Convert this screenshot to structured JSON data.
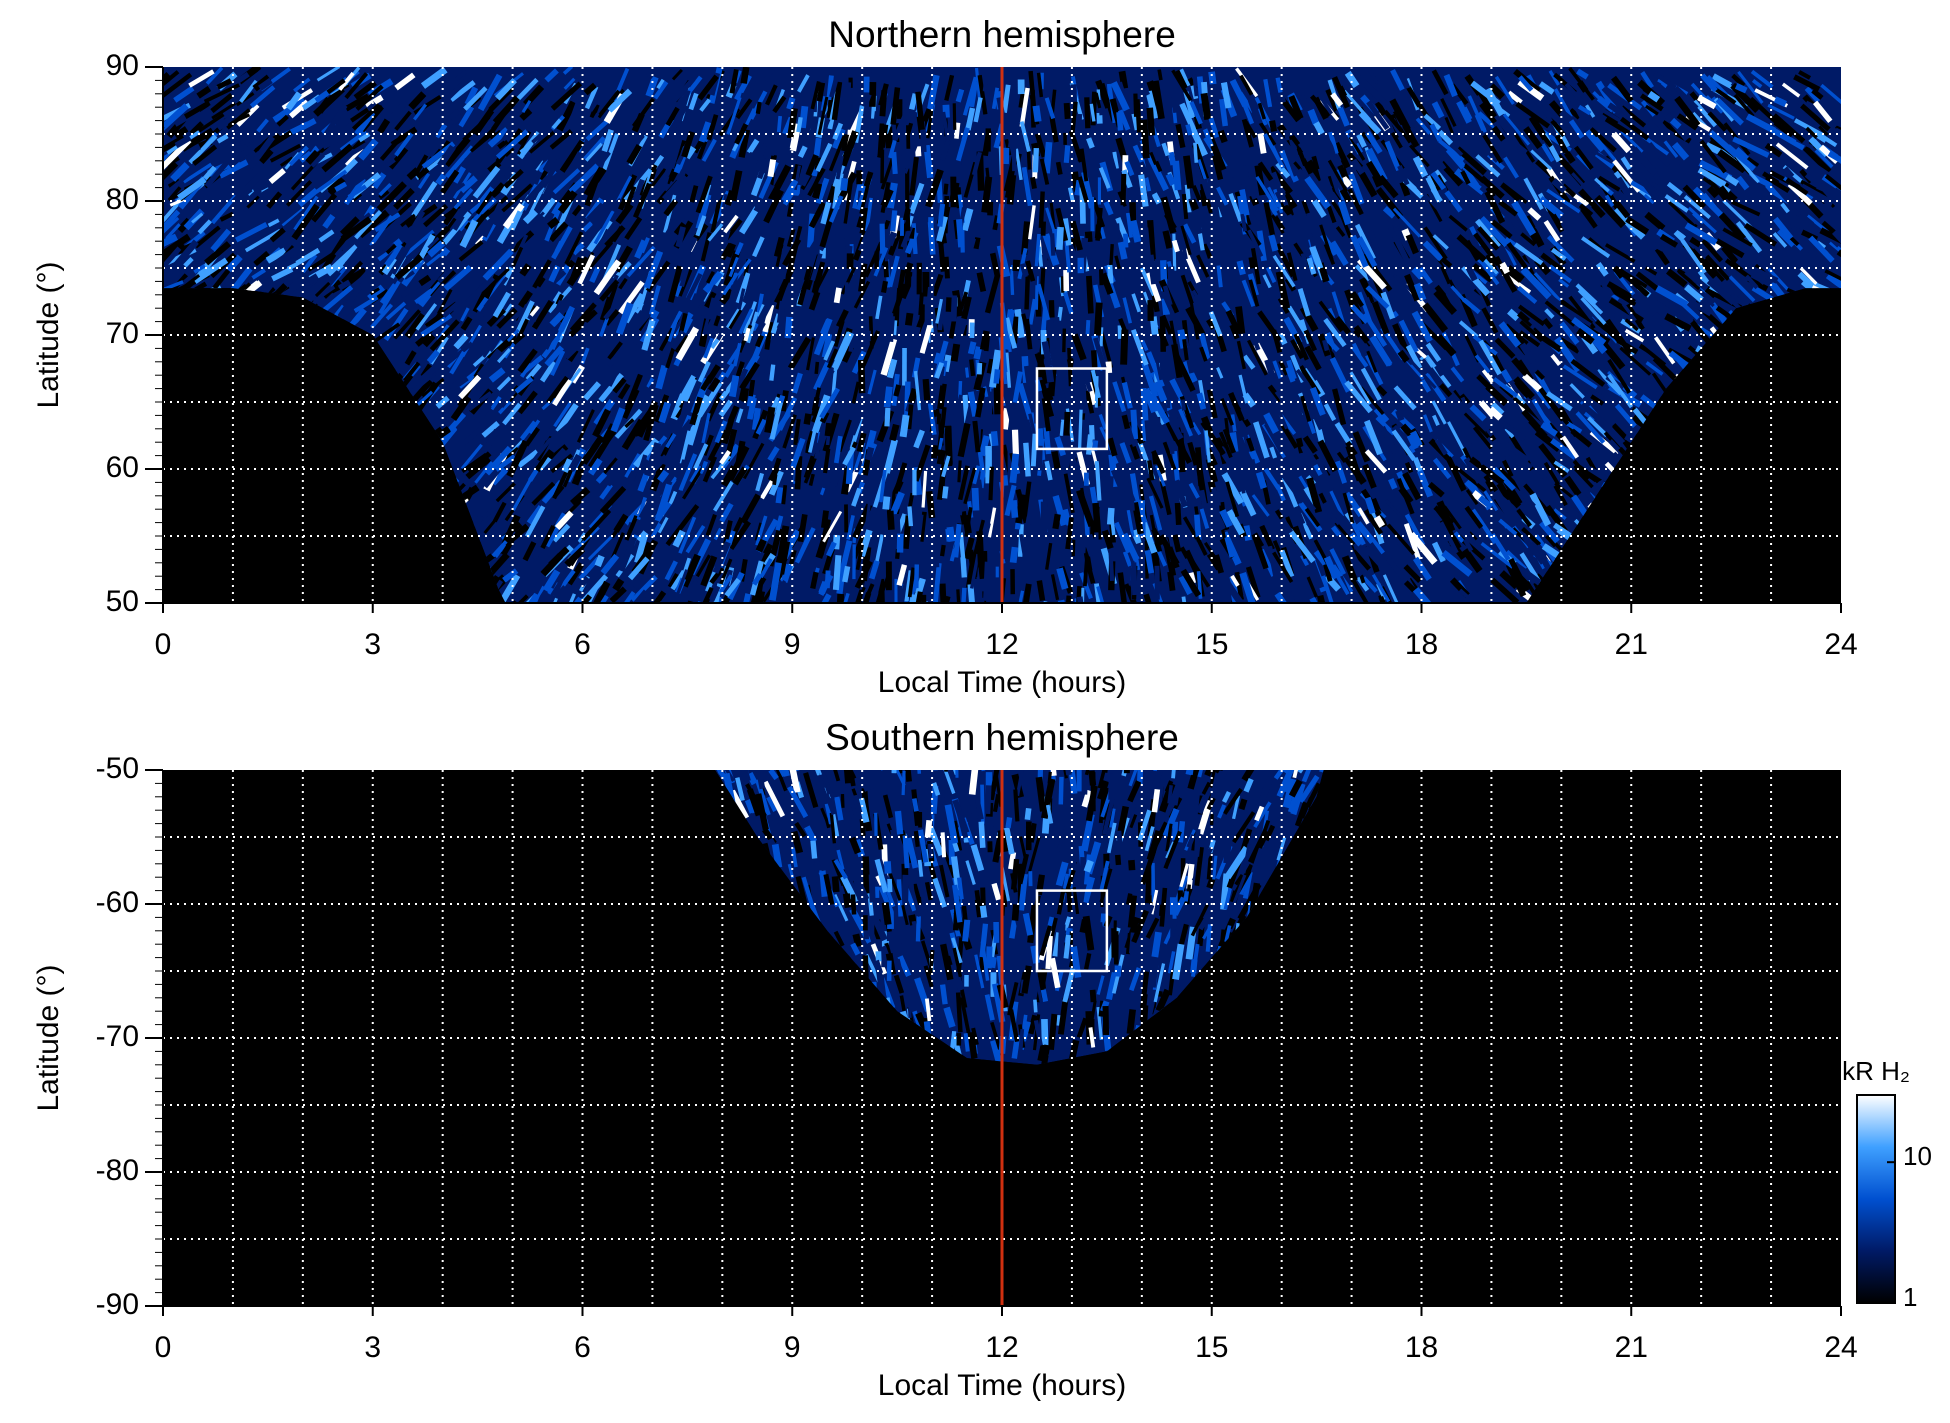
{
  "chart_data": [
    {
      "type": "heatmap",
      "title": "Northern hemisphere",
      "xlabel": "Local Time (hours)",
      "ylabel": "Latitude (°)",
      "xlim": [
        0,
        24
      ],
      "xticks": [
        0,
        3,
        6,
        9,
        12,
        15,
        18,
        21,
        24
      ],
      "xgrid": [
        1,
        2,
        3,
        4,
        5,
        6,
        7,
        8,
        9,
        10,
        11,
        12,
        13,
        14,
        15,
        16,
        17,
        18,
        19,
        20,
        21,
        22,
        23
      ],
      "ylim": [
        50,
        90
      ],
      "yticks": [
        50,
        60,
        70,
        80,
        90
      ],
      "ygrid": [
        55,
        60,
        65,
        70,
        75,
        80,
        85
      ],
      "yminor": 1,
      "region": {
        "x": [
          0,
          0,
          1,
          2,
          3,
          4,
          4.8,
          4.9,
          19.5,
          20.5,
          21.5,
          22.5,
          23.5,
          24,
          24
        ],
        "y": [
          90,
          73.5,
          73.5,
          72.8,
          70,
          62,
          51,
          50,
          50,
          58,
          66,
          72,
          73.5,
          73.5,
          90
        ]
      },
      "marker_x": 12,
      "marker_color": "#d03010",
      "box": {
        "x": [
          12.5,
          13.5
        ],
        "y": [
          61.5,
          67.5
        ]
      }
    },
    {
      "type": "heatmap",
      "title": "Southern hemisphere",
      "xlabel": "Local Time (hours)",
      "ylabel": "Latitude (°)",
      "xlim": [
        0,
        24
      ],
      "xticks": [
        0,
        3,
        6,
        9,
        12,
        15,
        18,
        21,
        24
      ],
      "xgrid": [
        1,
        2,
        3,
        4,
        5,
        6,
        7,
        8,
        9,
        10,
        11,
        12,
        13,
        14,
        15,
        16,
        17,
        18,
        19,
        20,
        21,
        22,
        23
      ],
      "ylim": [
        -90,
        -50
      ],
      "yticks": [
        -90,
        -80,
        -70,
        -60,
        -50
      ],
      "ygrid": [
        -85,
        -80,
        -75,
        -70,
        -65,
        -60,
        -55
      ],
      "yminor": 1,
      "region": {
        "x": [
          7.9,
          8.5,
          9.5,
          10.5,
          11.5,
          12.5,
          13.5,
          14.5,
          15.5,
          16.5,
          16.6
        ],
        "y": [
          -50,
          -55,
          -62,
          -68,
          -71.5,
          -72,
          -71,
          -67,
          -61,
          -52,
          -50
        ]
      },
      "marker_x": 12,
      "marker_color": "#d03010",
      "box": {
        "x": [
          12.5,
          13.5
        ],
        "y": [
          -65,
          -59
        ]
      },
      "colorbar": {
        "label": "kR H₂",
        "lim": [
          1,
          30
        ],
        "ticks": [
          1,
          10
        ],
        "log": true,
        "colormap": [
          "#000000",
          "#001a66",
          "#0050d0",
          "#3fa0ff",
          "#ffffff"
        ]
      }
    }
  ]
}
